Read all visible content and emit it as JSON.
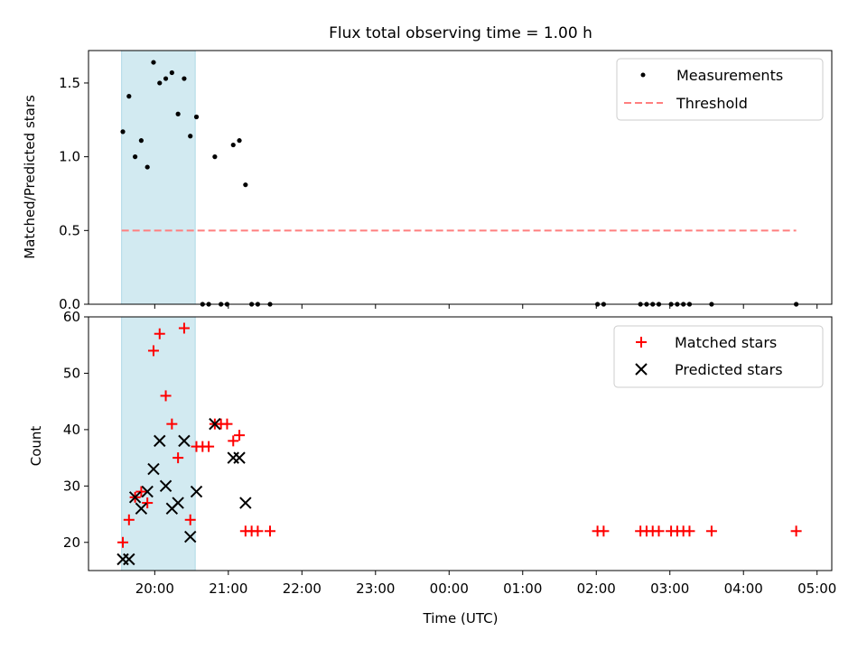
{
  "chart_data": [
    {
      "type": "scatter",
      "title": "Flux total observing time = 1.00 h",
      "xlabel": "",
      "ylabel": "Matched/Predicted stars",
      "ylim": [
        0,
        1.72
      ],
      "yticks": [
        "0.0",
        "0.5",
        "1.0",
        "1.5"
      ],
      "ytick_values": [
        0,
        0.5,
        1.0,
        1.5
      ],
      "shaded_interval": [
        "19:33",
        "20:33"
      ],
      "shade_color": "#add8e6",
      "legend_position": "top-right",
      "series": [
        {
          "name": "Measurements",
          "marker": "dot",
          "color": "#000000",
          "points": [
            [
              "19:34",
              1.17
            ],
            [
              "19:39",
              1.41
            ],
            [
              "19:44",
              1.0
            ],
            [
              "19:49",
              1.11
            ],
            [
              "19:54",
              0.93
            ],
            [
              "19:59",
              1.64
            ],
            [
              "20:04",
              1.5
            ],
            [
              "20:09",
              1.53
            ],
            [
              "20:14",
              1.57
            ],
            [
              "20:19",
              1.29
            ],
            [
              "20:24",
              1.53
            ],
            [
              "20:29",
              1.14
            ],
            [
              "20:34",
              1.27
            ],
            [
              "20:39",
              0.0
            ],
            [
              "20:44",
              0.0
            ],
            [
              "20:49",
              1.0
            ],
            [
              "20:54",
              0.0
            ],
            [
              "20:59",
              0.0
            ],
            [
              "21:04",
              1.08
            ],
            [
              "21:09",
              1.11
            ],
            [
              "21:14",
              0.81
            ],
            [
              "21:19",
              0.0
            ],
            [
              "21:24",
              0.0
            ],
            [
              "21:34",
              0.0
            ],
            [
              "02:01",
              0.0
            ],
            [
              "02:06",
              0.0
            ],
            [
              "02:36",
              0.0
            ],
            [
              "02:41",
              0.0
            ],
            [
              "02:46",
              0.0
            ],
            [
              "02:51",
              0.0
            ],
            [
              "03:01",
              0.0
            ],
            [
              "03:06",
              0.0
            ],
            [
              "03:11",
              0.0
            ],
            [
              "03:16",
              0.0
            ],
            [
              "03:34",
              0.0
            ],
            [
              "04:43",
              0.0
            ]
          ]
        },
        {
          "name": "Threshold",
          "marker": "dashed-line",
          "color": "#ff7f7f",
          "points": [
            [
              "19:33",
              0.5
            ],
            [
              "04:43",
              0.5
            ]
          ]
        }
      ]
    },
    {
      "type": "scatter",
      "title": "",
      "xlabel": "Time (UTC)",
      "ylabel": "Count",
      "ylim": [
        15,
        60
      ],
      "yticks": [
        "20",
        "30",
        "40",
        "50",
        "60"
      ],
      "ytick_values": [
        20,
        30,
        40,
        50,
        60
      ],
      "xlim": [
        "19:06",
        "05:12"
      ],
      "xticks": [
        "20:00",
        "21:00",
        "22:00",
        "23:00",
        "00:00",
        "01:00",
        "02:00",
        "03:00",
        "04:00",
        "05:00"
      ],
      "shaded_interval": [
        "19:33",
        "20:33"
      ],
      "shade_color": "#add8e6",
      "legend_position": "top-right",
      "series": [
        {
          "name": "Matched stars",
          "marker": "plus",
          "color": "#ff0000",
          "points": [
            [
              "19:34",
              20
            ],
            [
              "19:39",
              24
            ],
            [
              "19:44",
              28
            ],
            [
              "19:49",
              29
            ],
            [
              "19:54",
              27
            ],
            [
              "19:59",
              54
            ],
            [
              "20:04",
              57
            ],
            [
              "20:09",
              46
            ],
            [
              "20:14",
              41
            ],
            [
              "20:19",
              35
            ],
            [
              "20:24",
              58
            ],
            [
              "20:29",
              24
            ],
            [
              "20:34",
              37
            ],
            [
              "20:39",
              37
            ],
            [
              "20:44",
              37
            ],
            [
              "20:49",
              41
            ],
            [
              "20:54",
              41
            ],
            [
              "20:59",
              41
            ],
            [
              "21:04",
              38
            ],
            [
              "21:09",
              39
            ],
            [
              "21:14",
              22
            ],
            [
              "21:19",
              22
            ],
            [
              "21:24",
              22
            ],
            [
              "21:34",
              22
            ],
            [
              "02:01",
              22
            ],
            [
              "02:06",
              22
            ],
            [
              "02:36",
              22
            ],
            [
              "02:41",
              22
            ],
            [
              "02:46",
              22
            ],
            [
              "02:51",
              22
            ],
            [
              "03:01",
              22
            ],
            [
              "03:06",
              22
            ],
            [
              "03:11",
              22
            ],
            [
              "03:16",
              22
            ],
            [
              "03:34",
              22
            ],
            [
              "04:43",
              22
            ]
          ]
        },
        {
          "name": "Predicted stars",
          "marker": "x",
          "color": "#000000",
          "points": [
            [
              "19:34",
              17
            ],
            [
              "19:39",
              17
            ],
            [
              "19:44",
              28
            ],
            [
              "19:49",
              26
            ],
            [
              "19:54",
              29
            ],
            [
              "19:59",
              33
            ],
            [
              "20:04",
              38
            ],
            [
              "20:09",
              30
            ],
            [
              "20:14",
              26
            ],
            [
              "20:19",
              27
            ],
            [
              "20:24",
              38
            ],
            [
              "20:29",
              21
            ],
            [
              "20:34",
              29
            ],
            [
              "20:49",
              41
            ],
            [
              "21:04",
              35
            ],
            [
              "21:09",
              35
            ],
            [
              "21:14",
              27
            ]
          ]
        }
      ]
    }
  ]
}
